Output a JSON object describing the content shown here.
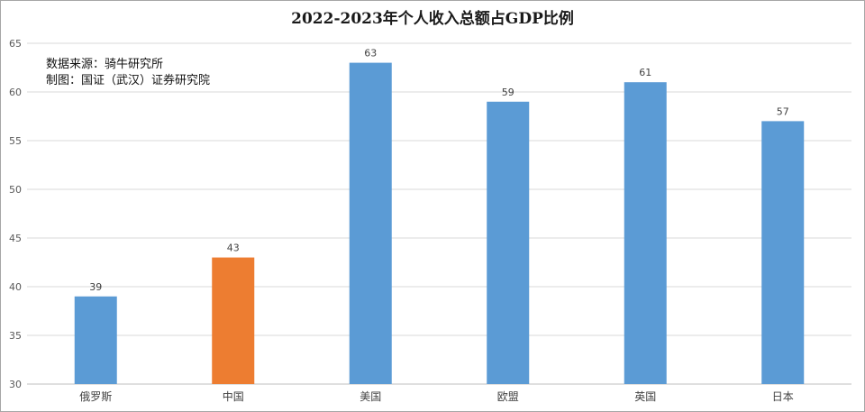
{
  "chart_data": {
    "type": "bar",
    "title": "2022-2023年个人收入总额占GDP比例",
    "annotations": [
      "数据来源：骑牛研究所",
      "制图：国证（武汉）证券研究院"
    ],
    "categories": [
      "俄罗斯",
      "中国",
      "美国",
      "欧盟",
      "英国",
      "日本"
    ],
    "values": [
      39,
      43,
      63,
      59,
      61,
      57
    ],
    "bar_colors": [
      "#5b9bd5",
      "#ed7d31",
      "#5b9bd5",
      "#5b9bd5",
      "#5b9bd5",
      "#5b9bd5"
    ],
    "ylim": [
      30,
      65
    ],
    "yticks": [
      30,
      35,
      40,
      45,
      50,
      55,
      60,
      65
    ],
    "grid": true,
    "xlabel": "",
    "ylabel": ""
  }
}
